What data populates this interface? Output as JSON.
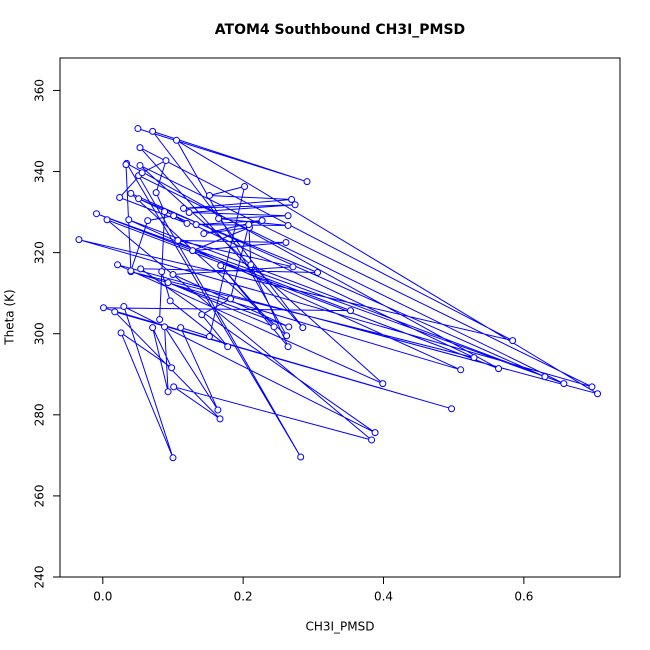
{
  "chart_data": {
    "type": "scatter",
    "title": "ATOM4 Southbound CH3I_PMSD",
    "x_label": "CH3I_PMSD",
    "y_label": "Theta (K)",
    "series": [
      {
        "color": "#0000ff",
        "x": [
          0.05,
          0.291,
          0.071,
          0.285,
          0.053,
          0.584,
          -0.034,
          0.697,
          0.053,
          0.399,
          0.021,
          0.705,
          0.105,
          0.262,
          0.04,
          0.63,
          -0.009,
          0.353,
          0.001,
          0.497,
          0.017,
          0.167,
          0.101,
          0.383,
          0.006,
          0.564,
          0.034,
          0.282,
          0.051,
          0.657,
          0.037,
          0.51,
          0.04,
          0.529,
          0.051,
          0.306,
          0.054,
          0.388,
          0.03,
          0.1,
          0.026,
          0.098,
          0.071,
          0.093,
          0.088,
          0.164,
          0.111,
          0.152,
          0.202,
          0.152,
          0.269,
          0.115,
          0.274,
          0.123,
          0.264,
          0.165,
          0.264,
          0.133,
          0.227,
          0.144,
          0.209,
          0.128,
          0.261,
          0.107,
          0.271,
          0.1,
          0.265,
          0.093,
          0.244,
          0.168,
          0.264,
          0.211,
          0.208,
          0.182,
          0.141,
          0.178,
          0.096,
          0.084,
          0.081,
          0.088,
          0.076,
          0.09,
          0.056,
          0.024,
          0.12,
          0.101,
          0.064,
          0.04,
          0.033
        ],
        "values": [
          350.6,
          337.5,
          349.9,
          301.5,
          345.9,
          298.3,
          323.2,
          286.9,
          341.5,
          287.7,
          317.0,
          285.2,
          347.7,
          299.5,
          334.6,
          289.4,
          329.6,
          305.7,
          306.4,
          281.5,
          305.4,
          279.0,
          286.9,
          273.8,
          328.1,
          291.4,
          342.0,
          269.6,
          339.0,
          287.7,
          328.1,
          291.1,
          315.3,
          294.1,
          333.3,
          315.1,
          316.0,
          275.6,
          306.7,
          269.4,
          300.2,
          291.6,
          301.5,
          285.7,
          301.7,
          281.2,
          301.5,
          299.3,
          336.3,
          334.1,
          333.1,
          330.9,
          331.8,
          329.9,
          329.1,
          328.4,
          326.7,
          326.9,
          327.9,
          324.7,
          326.2,
          320.5,
          322.5,
          323.0,
          316.5,
          314.6,
          301.7,
          312.6,
          301.7,
          316.8,
          296.8,
          317.0,
          326.9,
          308.6,
          304.7,
          296.8,
          308.1,
          315.3,
          303.5,
          330.1,
          334.8,
          342.7,
          339.7,
          333.6,
          327.2,
          329.1,
          327.9,
          315.5,
          341.7
        ]
      }
    ],
    "xlim": [
      -0.061,
      0.737
    ],
    "ylim": [
      240,
      368
    ],
    "xticks": [
      {
        "value": 0,
        "label": "0.0"
      },
      {
        "value": 0.2,
        "label": "0.2"
      },
      {
        "value": 0.4,
        "label": "0.4"
      },
      {
        "value": 0.6,
        "label": "0.6"
      }
    ],
    "yticks": [
      240,
      260,
      280,
      300,
      320,
      340,
      360
    ]
  }
}
